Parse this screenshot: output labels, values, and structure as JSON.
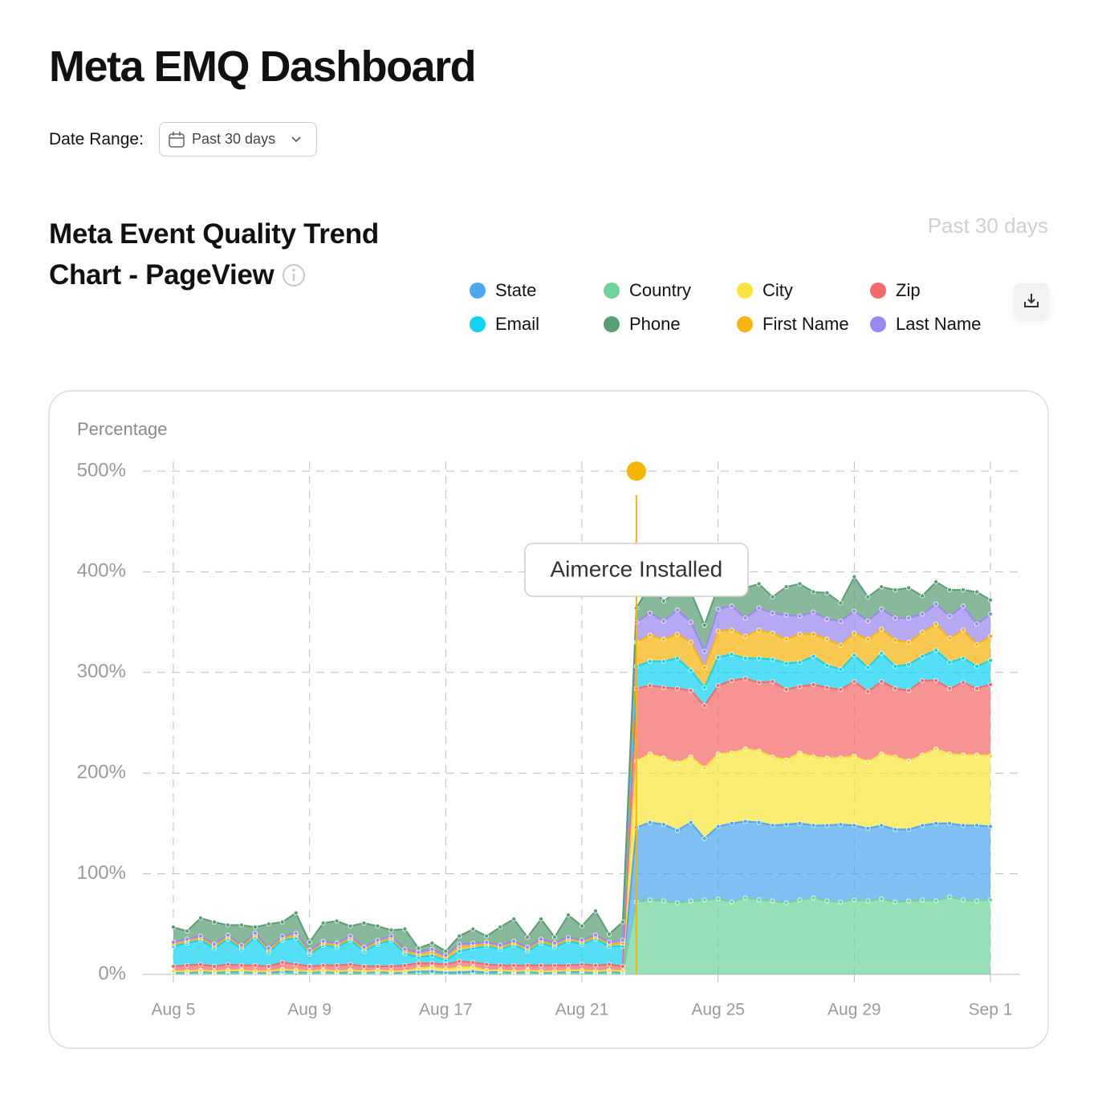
{
  "header": {
    "title": "Meta EMQ Dashboard",
    "date_range_label": "Date Range:",
    "date_range_value": "Past 30 days"
  },
  "chart_data": {
    "type": "stacked_area",
    "title": "Meta Event Quality Trend Chart - PageView",
    "period": "Past 30 days",
    "ylabel": "Percentage",
    "categories": [
      "Aug 5",
      null,
      null,
      null,
      null,
      null,
      null,
      null,
      null,
      null,
      "Aug 9",
      null,
      null,
      null,
      null,
      null,
      null,
      null,
      null,
      null,
      "Aug 17",
      null,
      null,
      null,
      null,
      null,
      null,
      null,
      null,
      null,
      "Aug 21",
      null,
      null,
      null,
      null,
      null,
      null,
      null,
      null,
      null,
      "Aug 25",
      null,
      null,
      null,
      null,
      null,
      null,
      null,
      null,
      null,
      "Aug 29",
      null,
      null,
      null,
      null,
      null,
      null,
      null,
      null,
      null,
      "Sep 1"
    ],
    "series": [
      {
        "name": "Country",
        "color": "#6fd39a",
        "values": [
          1,
          1,
          2,
          1,
          1,
          2,
          1,
          1,
          2,
          1,
          1,
          2,
          1,
          1,
          1,
          2,
          1,
          1,
          1,
          2,
          1,
          1,
          2,
          1,
          1,
          1,
          2,
          1,
          1,
          2,
          1,
          1,
          2,
          1,
          72,
          74,
          73,
          71,
          73,
          74,
          75,
          72,
          76,
          74,
          73,
          71,
          74,
          76,
          73,
          72,
          74,
          73,
          75,
          72,
          73,
          74,
          73,
          77,
          74,
          73,
          74
        ]
      },
      {
        "name": "State",
        "color": "#4da6f0",
        "values": [
          1,
          1,
          1,
          1,
          2,
          1,
          1,
          1,
          1,
          2,
          1,
          1,
          1,
          2,
          1,
          1,
          1,
          1,
          2,
          1,
          1,
          1,
          1,
          1,
          2,
          1,
          1,
          1,
          1,
          1,
          2,
          1,
          1,
          1,
          74,
          77,
          76,
          72,
          78,
          61,
          72,
          78,
          76,
          77,
          75,
          78,
          76,
          72,
          75,
          77,
          74,
          72,
          73,
          72,
          71,
          74,
          77,
          73,
          74,
          75,
          73
        ]
      },
      {
        "name": "City",
        "color": "#f7e43c",
        "values": [
          1,
          1,
          1,
          1,
          1,
          1,
          1,
          1,
          2,
          1,
          1,
          1,
          1,
          1,
          1,
          1,
          1,
          1,
          3,
          4,
          3,
          5,
          4,
          2,
          1,
          1,
          1,
          1,
          1,
          1,
          1,
          1,
          1,
          1,
          66,
          68,
          66,
          67,
          65,
          70,
          72,
          70,
          72,
          71,
          68,
          64,
          70,
          68,
          67,
          66,
          69,
          66,
          71,
          72,
          68,
          70,
          74,
          69,
          70,
          70,
          70
        ]
      },
      {
        "name": "Zip",
        "color": "#f46a6a",
        "values": [
          5,
          6,
          6,
          5,
          6,
          5,
          6,
          5,
          7,
          6,
          5,
          5,
          6,
          6,
          5,
          4,
          5,
          6,
          5,
          4,
          5,
          6,
          5,
          6,
          5,
          6,
          5,
          6,
          6,
          5,
          6,
          6,
          6,
          5,
          72,
          68,
          70,
          74,
          66,
          62,
          68,
          72,
          70,
          68,
          75,
          70,
          66,
          72,
          70,
          68,
          74,
          70,
          72,
          68,
          70,
          74,
          68,
          65,
          72,
          66,
          71
        ]
      },
      {
        "name": "Email",
        "color": "#12d3f2",
        "values": [
          20,
          22,
          24,
          18,
          25,
          16,
          28,
          14,
          22,
          26,
          12,
          20,
          18,
          24,
          15,
          22,
          26,
          12,
          6,
          8,
          4,
          10,
          14,
          18,
          16,
          20,
          14,
          22,
          18,
          24,
          20,
          26,
          18,
          20,
          22,
          24,
          26,
          30,
          20,
          18,
          28,
          26,
          20,
          24,
          22,
          26,
          24,
          28,
          22,
          20,
          26,
          24,
          28,
          22,
          26,
          24,
          30,
          26,
          24,
          22,
          24
        ]
      },
      {
        "name": "First Name",
        "color": "#f7b30e",
        "values": [
          2,
          2,
          2,
          2,
          2,
          2,
          2,
          2,
          2,
          3,
          2,
          2,
          2,
          2,
          2,
          2,
          2,
          2,
          3,
          3,
          3,
          4,
          3,
          2,
          2,
          2,
          2,
          2,
          2,
          2,
          2,
          2,
          2,
          3,
          24,
          26,
          22,
          24,
          28,
          20,
          26,
          24,
          22,
          28,
          26,
          24,
          28,
          22,
          26,
          24,
          22,
          28,
          24,
          26,
          22,
          24,
          26,
          24,
          28,
          22,
          24
        ]
      },
      {
        "name": "Last Name",
        "color": "#9a87ef",
        "values": [
          2,
          2,
          2,
          2,
          2,
          2,
          2,
          2,
          2,
          2,
          2,
          2,
          2,
          2,
          2,
          2,
          2,
          2,
          2,
          3,
          2,
          3,
          2,
          2,
          2,
          2,
          2,
          2,
          2,
          2,
          2,
          2,
          2,
          3,
          20,
          22,
          18,
          24,
          20,
          16,
          22,
          24,
          18,
          22,
          20,
          24,
          18,
          22,
          20,
          24,
          22,
          18,
          20,
          22,
          24,
          18,
          20,
          22,
          24,
          20,
          22
        ]
      },
      {
        "name": "Phone",
        "color": "#5a9e75",
        "values": [
          15,
          8,
          18,
          22,
          10,
          20,
          6,
          24,
          14,
          20,
          8,
          18,
          22,
          10,
          24,
          14,
          6,
          20,
          4,
          6,
          4,
          8,
          14,
          6,
          18,
          22,
          10,
          20,
          6,
          22,
          14,
          24,
          8,
          18,
          14,
          28,
          20,
          18,
          30,
          26,
          22,
          18,
          30,
          24,
          16,
          28,
          32,
          20,
          26,
          18,
          34,
          24,
          22,
          28,
          30,
          18,
          22,
          26,
          16,
          32,
          14
        ]
      }
    ],
    "ylim": [
      0,
      500
    ],
    "yticks": [
      {
        "value": 0,
        "label": "0%"
      },
      {
        "value": 100,
        "label": "100%"
      },
      {
        "value": 200,
        "label": "200%"
      },
      {
        "value": 300,
        "label": "300%"
      },
      {
        "value": 400,
        "label": "400%"
      },
      {
        "value": 500,
        "label": "500%"
      }
    ],
    "grid": true,
    "annotation": {
      "label": "Aimerce Installed",
      "category_index": 34,
      "color": "#f7b500"
    }
  }
}
